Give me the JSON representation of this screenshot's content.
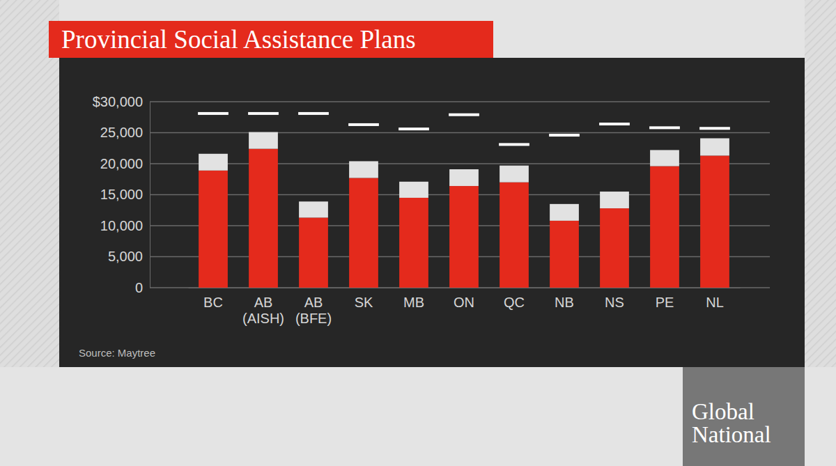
{
  "chart_data": {
    "type": "bar",
    "title": "Provincial Social Assistance Plans",
    "source": "Source: Maytree",
    "annotations": [
      "Global National"
    ],
    "categories": [
      "BC",
      "AB (AISH)",
      "AB (BFE)",
      "SK",
      "MB",
      "ON",
      "QC",
      "NB",
      "NS",
      "PE",
      "NL"
    ],
    "series": [
      {
        "type": "bar",
        "color": "#e42a1c",
        "values": [
          18900,
          22400,
          11300,
          17700,
          14500,
          16400,
          17000,
          10800,
          12800,
          19600,
          21300
        ]
      },
      {
        "type": "bar",
        "color": "#e2e2e2",
        "values": [
          2700,
          2700,
          2600,
          2700,
          2600,
          2700,
          2700,
          2700,
          2700,
          2600,
          2800
        ]
      },
      {
        "type": "scatter",
        "marker": "dash",
        "color": "#ffffff",
        "values": [
          28100,
          28100,
          28100,
          26300,
          25600,
          27900,
          23100,
          24600,
          26400,
          25800,
          25700
        ]
      }
    ],
    "stacked": true,
    "grid": true,
    "ylim": [
      0,
      30000
    ],
    "yticks": [
      {
        "value": 0,
        "label": "0"
      },
      {
        "value": 5000,
        "label": "5,000"
      },
      {
        "value": 10000,
        "label": "10,000"
      },
      {
        "value": 15000,
        "label": "15,000"
      },
      {
        "value": 20000,
        "label": "20,000"
      },
      {
        "value": 25000,
        "label": "25,000"
      },
      {
        "value": 30000,
        "label": "$30,000"
      }
    ]
  }
}
